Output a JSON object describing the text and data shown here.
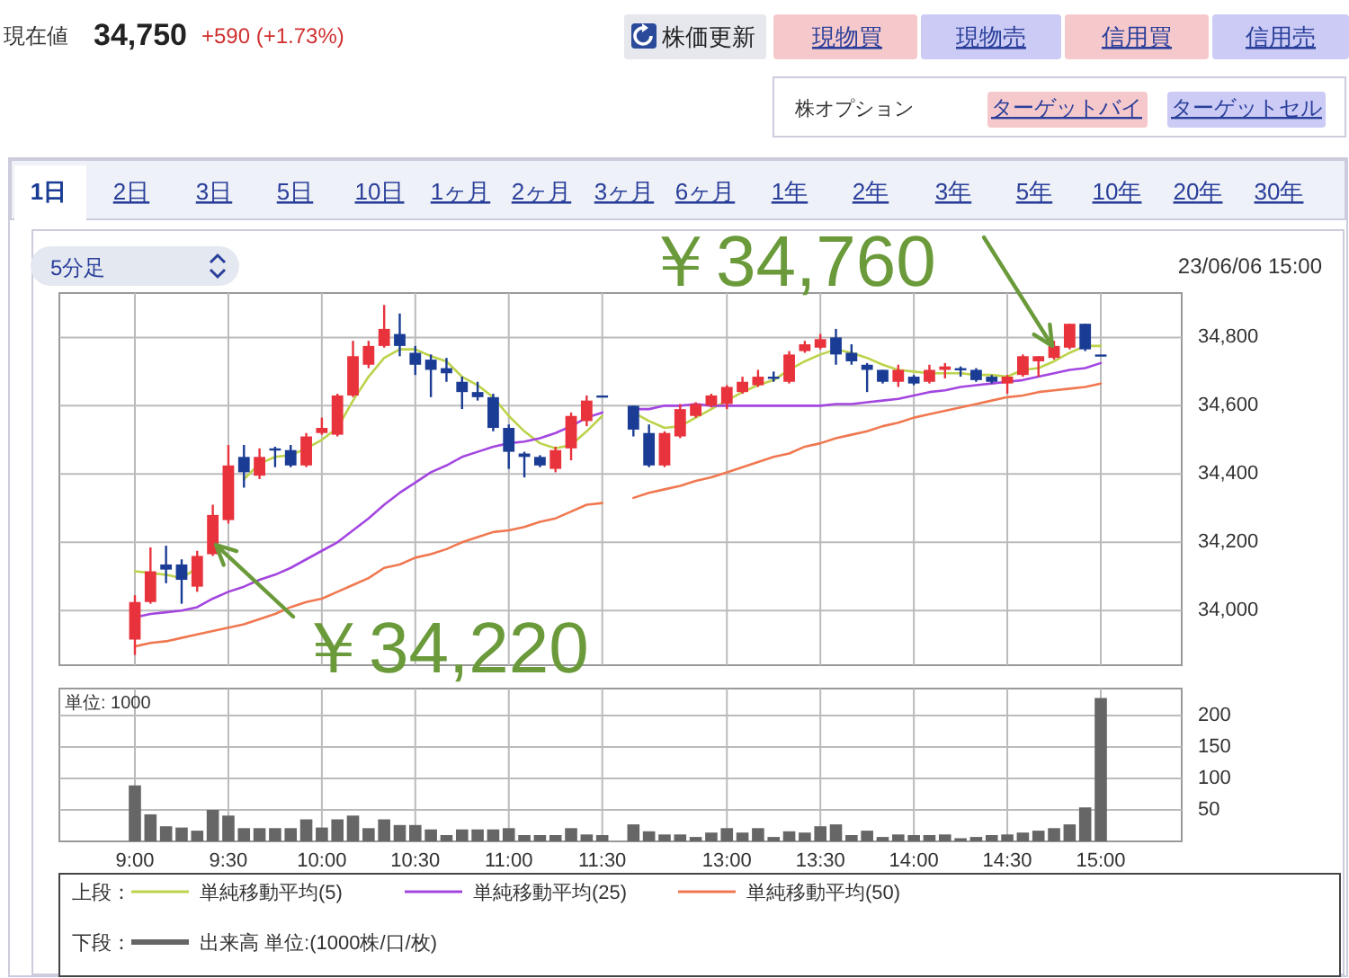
{
  "chart_data": [
    {
      "type": "other",
      "annotations": [
        "現在値",
        "34,750",
        "+590 (+1.73%)",
        "株価更新",
        "現物買",
        "現物売",
        "信用買",
        "信用売",
        "株オプション",
        "ターゲットバイ",
        "ターゲットセル",
        "1日",
        "2日",
        "3日",
        "5日",
        "10日",
        "1ヶ月",
        "2ヶ月",
        "3ヶ月",
        "6ヶ月",
        "1年",
        "2年",
        "3年",
        "5年",
        "10年",
        "20年",
        "30年"
      ]
    },
    {
      "type": "candlestick",
      "legend_title": "上段：",
      "legend": "bottom",
      "grid": true,
      "tick_labels": "y",
      "categories": [
        null,
        null,
        null,
        null,
        null,
        null,
        null,
        null,
        null,
        null,
        null,
        null,
        null,
        null,
        null,
        null,
        null,
        null,
        null,
        null,
        null,
        null,
        null,
        null,
        null,
        null,
        null,
        null,
        null,
        null,
        null,
        null,
        null,
        null,
        null,
        null,
        null,
        null,
        null,
        null,
        null,
        null,
        null,
        null,
        null,
        null,
        null,
        null,
        null,
        null,
        null,
        null,
        null,
        null,
        null,
        null,
        null,
        null,
        null,
        null,
        null,
        null,
        null
      ],
      "ylim": [
        33840,
        34930
      ],
      "yticks": [
        {
          "value": 34000,
          "label": "34,000"
        },
        {
          "value": 34200,
          "label": "34,200"
        },
        {
          "value": 34400,
          "label": "34,400"
        },
        {
          "value": 34600,
          "label": "34,600"
        },
        {
          "value": 34800,
          "label": "34,800"
        }
      ],
      "ohlc": [
        [
          33915,
          34045,
          33870,
          34025
        ],
        [
          34025,
          34185,
          34020,
          34115
        ],
        [
          34135,
          34190,
          34080,
          34120
        ],
        [
          34135,
          34150,
          34020,
          34090
        ],
        [
          34070,
          34175,
          34055,
          34160
        ],
        [
          34165,
          34310,
          34160,
          34280
        ],
        [
          34265,
          34485,
          34255,
          34425
        ],
        [
          34450,
          34485,
          34360,
          34405
        ],
        [
          34395,
          34475,
          34385,
          34450
        ],
        [
          34475,
          34480,
          34420,
          34470
        ],
        [
          34470,
          34485,
          34420,
          34425
        ],
        [
          34425,
          34520,
          34420,
          34510
        ],
        [
          34520,
          34565,
          34515,
          34535
        ],
        [
          34515,
          34635,
          34510,
          34630
        ],
        [
          34630,
          34790,
          34625,
          34745
        ],
        [
          34720,
          34790,
          34710,
          34775
        ],
        [
          34775,
          34895,
          34770,
          34825
        ],
        [
          34810,
          34870,
          34745,
          34775
        ],
        [
          34755,
          34775,
          34690,
          34720
        ],
        [
          34735,
          34750,
          34625,
          34705
        ],
        [
          34710,
          34740,
          34670,
          34695
        ],
        [
          34670,
          34685,
          34590,
          34640
        ],
        [
          34640,
          34670,
          34615,
          34625
        ],
        [
          34625,
          34635,
          34525,
          34535
        ],
        [
          34535,
          34545,
          34415,
          34465
        ],
        [
          34460,
          34465,
          34390,
          34450
        ],
        [
          34450,
          34455,
          34420,
          34425
        ],
        [
          34415,
          34480,
          34405,
          34470
        ],
        [
          34475,
          34580,
          34440,
          34570
        ],
        [
          34555,
          34630,
          34540,
          34615
        ],
        [
          34630,
          34630,
          34630,
          34630
        ],
        null,
        [
          34600,
          34600,
          34510,
          34530
        ],
        [
          34520,
          34545,
          34420,
          34425
        ],
        [
          34425,
          34525,
          34420,
          34520
        ],
        [
          34510,
          34605,
          34505,
          34590
        ],
        [
          34570,
          34610,
          34565,
          34605
        ],
        [
          34600,
          34635,
          34595,
          34630
        ],
        [
          34605,
          34660,
          34590,
          34655
        ],
        [
          34640,
          34685,
          34635,
          34670
        ],
        [
          34660,
          34705,
          34655,
          34685
        ],
        [
          34685,
          34700,
          34670,
          34680
        ],
        [
          34670,
          34760,
          34665,
          34750
        ],
        [
          34760,
          34790,
          34755,
          34780
        ],
        [
          34770,
          34810,
          34765,
          34795
        ],
        [
          34800,
          34825,
          34720,
          34750
        ],
        [
          34755,
          34780,
          34720,
          34730
        ],
        [
          34720,
          34725,
          34640,
          34705
        ],
        [
          34705,
          34705,
          34665,
          34670
        ],
        [
          34670,
          34720,
          34655,
          34705
        ],
        [
          34685,
          34690,
          34660,
          34665
        ],
        [
          34670,
          34720,
          34665,
          34705
        ],
        [
          34705,
          34725,
          34680,
          34715
        ],
        [
          34710,
          34715,
          34685,
          34705
        ],
        [
          34705,
          34710,
          34670,
          34675
        ],
        [
          34685,
          34690,
          34665,
          34670
        ],
        [
          34665,
          34690,
          34635,
          34685
        ],
        [
          34690,
          34750,
          34685,
          34745
        ],
        [
          34730,
          34745,
          34685,
          34745
        ],
        [
          34740,
          34790,
          34735,
          34775
        ],
        [
          34770,
          34840,
          34765,
          34840
        ],
        [
          34840,
          34840,
          34760,
          34765
        ],
        [
          34750,
          34750,
          34750,
          34750
        ]
      ],
      "colors": [
        "#e8323c",
        "#e8323c",
        "#1a3c94",
        "#1a3c94",
        "#e8323c",
        "#e8323c",
        "#e8323c",
        "#1a3c94",
        "#e8323c",
        "#1a3c94",
        "#1a3c94",
        "#e8323c",
        "#e8323c",
        "#e8323c",
        "#e8323c",
        "#e8323c",
        "#e8323c",
        "#1a3c94",
        "#1a3c94",
        "#1a3c94",
        "#1a3c94",
        "#1a3c94",
        "#1a3c94",
        "#1a3c94",
        "#1a3c94",
        "#1a3c94",
        "#1a3c94",
        "#e8323c",
        "#e8323c",
        "#e8323c",
        "#1a3c94",
        null,
        "#1a3c94",
        "#1a3c94",
        "#e8323c",
        "#e8323c",
        "#e8323c",
        "#e8323c",
        "#e8323c",
        "#e8323c",
        "#e8323c",
        "#1a3c94",
        "#e8323c",
        "#e8323c",
        "#e8323c",
        "#1a3c94",
        "#1a3c94",
        "#1a3c94",
        "#1a3c94",
        "#e8323c",
        "#1a3c94",
        "#e8323c",
        "#e8323c",
        "#1a3c94",
        "#1a3c94",
        "#1a3c94",
        "#e8323c",
        "#e8323c",
        "#e8323c",
        "#e8323c",
        "#e8323c",
        "#1a3c94",
        "#1a3c94"
      ],
      "series": [
        {
          "name": "単純移動平均(5)",
          "type": "line",
          "color": "#bcd34a",
          "values": [
            34115,
            34110,
            34105,
            34095,
            34125,
            null,
            null,
            34385,
            34430,
            34450,
            34455,
            34475,
            34500,
            34535,
            34615,
            34685,
            34740,
            34765,
            34765,
            34745,
            34730,
            34685,
            34660,
            34625,
            34570,
            34525,
            34490,
            34475,
            34485,
            34525,
            34570,
            null,
            34580,
            34555,
            34535,
            34540,
            34565,
            34590,
            34615,
            34640,
            34660,
            34675,
            34705,
            34730,
            34750,
            34765,
            34755,
            34740,
            34720,
            34705,
            34700,
            34695,
            34695,
            34695,
            34690,
            34690,
            34685,
            34705,
            34710,
            34730,
            34755,
            34775,
            34775
          ]
        },
        {
          "name": "単純移動平均(25)",
          "type": "line",
          "color": "#a346e0",
          "values": [
            33980,
            33990,
            33995,
            34000,
            34010,
            34035,
            34055,
            34070,
            34090,
            34105,
            34125,
            34150,
            34175,
            34200,
            34235,
            34270,
            34310,
            34345,
            34375,
            34405,
            34425,
            34450,
            34465,
            34480,
            34490,
            34495,
            34505,
            34520,
            34540,
            34565,
            34580,
            null,
            34590,
            34590,
            34600,
            34600,
            34605,
            34600,
            34600,
            34600,
            34600,
            34600,
            34600,
            34600,
            34600,
            34605,
            34605,
            34610,
            34615,
            34620,
            34630,
            34640,
            34645,
            34655,
            34660,
            34665,
            34670,
            34675,
            34685,
            34695,
            34705,
            34710,
            34725
          ]
        },
        {
          "name": "単純移動平均(50)",
          "type": "line",
          "color": "#f07850",
          "values": [
            33895,
            33905,
            33910,
            33920,
            33930,
            33940,
            33950,
            33960,
            33975,
            33990,
            34010,
            34025,
            34035,
            34055,
            34075,
            34095,
            34125,
            34135,
            34155,
            34165,
            34180,
            34200,
            34215,
            34230,
            34235,
            34245,
            34260,
            34270,
            34290,
            34310,
            34315,
            null,
            34330,
            34345,
            34355,
            34365,
            34380,
            34390,
            34405,
            34420,
            34435,
            34450,
            34460,
            34480,
            34490,
            34505,
            34515,
            34525,
            34540,
            34550,
            34565,
            34575,
            34585,
            34595,
            34605,
            34615,
            34625,
            34630,
            34640,
            34645,
            34650,
            34655,
            34665
          ]
        }
      ],
      "annotations": [
        {
          "text": "￥34,760",
          "y": 34775
        },
        "￥34,220",
        "5分足",
        "23/06/06 15:00"
      ]
    },
    {
      "type": "bar",
      "legend_title": "下段：",
      "legend": "bottom",
      "grid": true,
      "categories": [
        "9:00",
        null,
        null,
        null,
        null,
        null,
        "9:30",
        null,
        null,
        null,
        null,
        null,
        "10:00",
        null,
        null,
        null,
        null,
        null,
        "10:30",
        null,
        null,
        null,
        null,
        null,
        "11:00",
        null,
        null,
        null,
        null,
        null,
        "11:30",
        null,
        null,
        null,
        null,
        null,
        null,
        null,
        "13:00",
        null,
        null,
        null,
        null,
        null,
        "13:30",
        null,
        null,
        null,
        null,
        null,
        "14:00",
        null,
        null,
        null,
        null,
        null,
        "14:30",
        null,
        null,
        null,
        null,
        null,
        "15:00"
      ],
      "ylim": [
        0,
        243
      ],
      "yticks": [
        50,
        100,
        150,
        200
      ],
      "series": [
        {
          "name": "出来高 単位:(1000株/口/枚)",
          "color": "#666666",
          "values": [
            89,
            43,
            24,
            22,
            17,
            50,
            41,
            21,
            21,
            21,
            21,
            35,
            22,
            35,
            41,
            21,
            35,
            26,
            26,
            19,
            10,
            19,
            19,
            19,
            21,
            10,
            10,
            10,
            21,
            11,
            10,
            null,
            27,
            16,
            11,
            11,
            7,
            14,
            21,
            14,
            21,
            7,
            16,
            14,
            24,
            27,
            10,
            17,
            7,
            11,
            10,
            10,
            11,
            5,
            7,
            10,
            11,
            14,
            17,
            21,
            27,
            54,
            228
          ]
        }
      ],
      "annotations": [
        "単位: 1000"
      ]
    }
  ]
}
